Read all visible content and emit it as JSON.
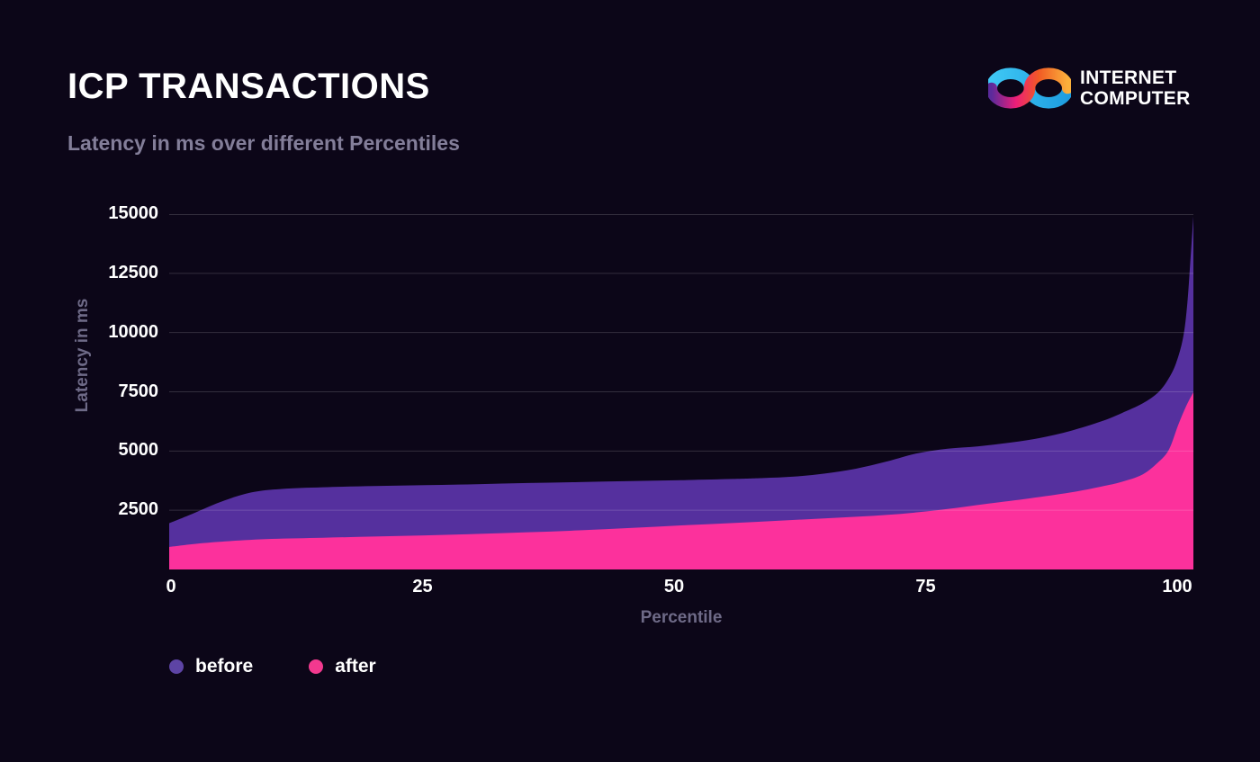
{
  "page": {
    "background": "#0c0618"
  },
  "header": {
    "title": "ICP TRANSACTIONS",
    "subtitle": "Latency in ms over different Percentiles"
  },
  "logo": {
    "line1": "INTERNET",
    "line2": "COMPUTER",
    "colors": {
      "purple": "#5b2a9b",
      "pink": "#ed1e79",
      "orange": "#f15a24",
      "yellow": "#fbb03b",
      "blue_light": "#3fc8f5",
      "blue": "#1e9de0"
    }
  },
  "chart_data": {
    "type": "area",
    "title": "ICP TRANSACTIONS",
    "subtitle": "Latency in ms over different Percentiles",
    "xlabel": "Percentile",
    "ylabel": "Latency in ms",
    "xlim": [
      0,
      100
    ],
    "ylim": [
      0,
      15000
    ],
    "x_ticks": [
      0,
      25,
      50,
      75,
      100
    ],
    "y_ticks": [
      2500,
      5000,
      7500,
      10000,
      12500,
      15000
    ],
    "grid": true,
    "gridline_color": "rgba(255,255,255,0.16)",
    "legend_position": "bottom-left",
    "series": [
      {
        "name": "before",
        "color": "#55309e",
        "points": [
          [
            0,
            1950
          ],
          [
            2,
            2300
          ],
          [
            5,
            2850
          ],
          [
            8,
            3250
          ],
          [
            11,
            3400
          ],
          [
            15,
            3470
          ],
          [
            20,
            3520
          ],
          [
            25,
            3560
          ],
          [
            30,
            3600
          ],
          [
            35,
            3650
          ],
          [
            40,
            3690
          ],
          [
            45,
            3730
          ],
          [
            50,
            3770
          ],
          [
            55,
            3820
          ],
          [
            58,
            3860
          ],
          [
            61,
            3920
          ],
          [
            64,
            4050
          ],
          [
            67,
            4250
          ],
          [
            70,
            4550
          ],
          [
            73,
            4900
          ],
          [
            76,
            5100
          ],
          [
            79,
            5200
          ],
          [
            82,
            5350
          ],
          [
            85,
            5550
          ],
          [
            88,
            5850
          ],
          [
            91,
            6250
          ],
          [
            93,
            6600
          ],
          [
            95,
            7000
          ],
          [
            96.5,
            7450
          ],
          [
            97.5,
            8000
          ],
          [
            98.3,
            8700
          ],
          [
            99,
            9800
          ],
          [
            99.4,
            11200
          ],
          [
            99.7,
            13000
          ],
          [
            100,
            14900
          ]
        ]
      },
      {
        "name": "after",
        "color": "#fc319c",
        "points": [
          [
            0,
            950
          ],
          [
            3,
            1100
          ],
          [
            6,
            1200
          ],
          [
            10,
            1290
          ],
          [
            15,
            1340
          ],
          [
            20,
            1390
          ],
          [
            25,
            1440
          ],
          [
            30,
            1500
          ],
          [
            35,
            1570
          ],
          [
            40,
            1650
          ],
          [
            45,
            1750
          ],
          [
            50,
            1860
          ],
          [
            55,
            1960
          ],
          [
            60,
            2070
          ],
          [
            65,
            2180
          ],
          [
            70,
            2300
          ],
          [
            75,
            2500
          ],
          [
            80,
            2780
          ],
          [
            84,
            3000
          ],
          [
            88,
            3250
          ],
          [
            91,
            3500
          ],
          [
            93,
            3700
          ],
          [
            95,
            4000
          ],
          [
            96.5,
            4500
          ],
          [
            97.6,
            5050
          ],
          [
            98.5,
            6080
          ],
          [
            99.3,
            6900
          ],
          [
            100,
            7480
          ]
        ]
      }
    ]
  },
  "legend": {
    "items": [
      {
        "label": "before",
        "color": "#5d44a5"
      },
      {
        "label": "after",
        "color": "#f3398f"
      }
    ]
  }
}
